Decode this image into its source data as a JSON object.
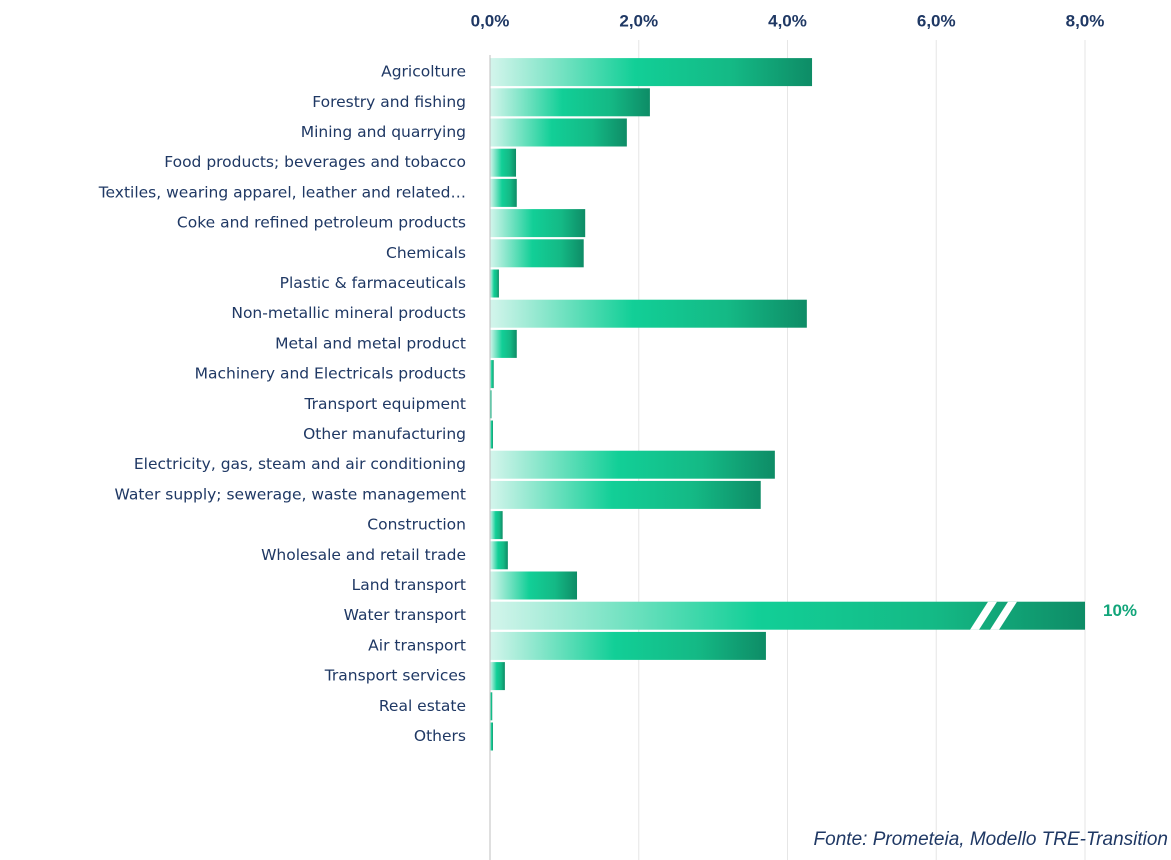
{
  "chart_data": {
    "type": "barh",
    "categories": [
      "Agricolture",
      "Forestry and fishing",
      "Mining and quarrying",
      "Food products; beverages and tobacco",
      "Textiles, wearing apparel, leather and related…",
      "Coke and refined petroleum products",
      "Chemicals",
      "Plastic & farmaceuticals",
      "Non-metallic mineral products",
      "Metal and metal product",
      "Machinery and Electricals products",
      "Transport equipment",
      "Other manufacturing",
      "Electricity, gas, steam and air conditioning",
      "Water supply; sewerage, waste management",
      "Construction",
      "Wholesale and retail trade",
      "Land transport",
      "Water transport",
      "Air transport",
      "Transport services",
      "Real estate",
      "Others"
    ],
    "values": [
      4.33,
      2.15,
      1.84,
      0.35,
      0.36,
      1.28,
      1.26,
      0.12,
      4.26,
      0.36,
      0.05,
      0.02,
      0.04,
      3.83,
      3.64,
      0.17,
      0.24,
      1.17,
      10,
      3.71,
      0.2,
      0.03,
      0.04
    ],
    "value_labels": [
      null,
      null,
      null,
      null,
      null,
      null,
      null,
      null,
      null,
      null,
      null,
      null,
      null,
      null,
      null,
      null,
      null,
      null,
      "10%",
      null,
      null,
      null,
      null
    ],
    "color": "#12cf97",
    "xlim": [
      0,
      8
    ],
    "xticks": [
      {
        "value": 0,
        "label": "0,0%"
      },
      {
        "value": 2,
        "label": "2,0%"
      },
      {
        "value": 4,
        "label": "4,0%"
      },
      {
        "value": 6,
        "label": "6,0%"
      },
      {
        "value": 8,
        "label": "8,0%"
      }
    ],
    "grid": true,
    "source": "Fonte: Prometeia, Modello TRE-Transition"
  }
}
